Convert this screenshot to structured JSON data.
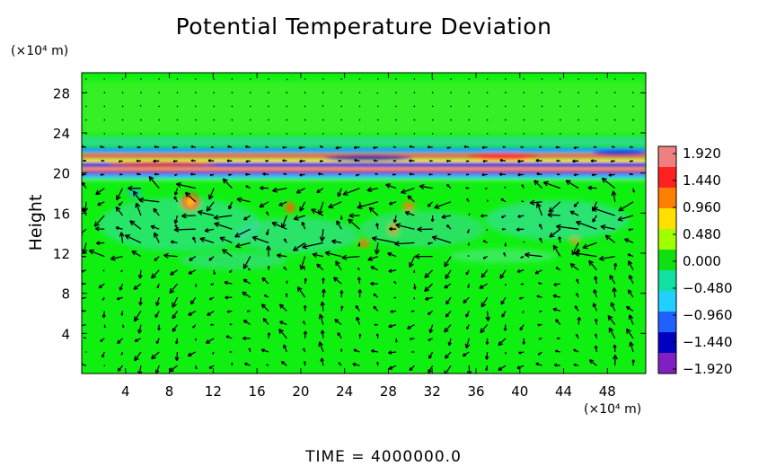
{
  "chart_data": {
    "type": "heatmap",
    "title": "Potential Temperature Deviation",
    "ylabel": "Height",
    "y_unit": "(×10⁴ m)",
    "x_unit": "(×10⁴ m)",
    "x_ticks": [
      4,
      8,
      12,
      16,
      20,
      24,
      28,
      32,
      36,
      40,
      44,
      48
    ],
    "y_ticks": [
      4,
      8,
      12,
      16,
      20,
      24,
      28
    ],
    "xlim": [
      0,
      51.5
    ],
    "ylim": [
      0,
      30
    ],
    "colorbar": {
      "ticks": [
        "1.920",
        "1.440",
        "0.960",
        "0.480",
        "0.000",
        "−0.480",
        "−0.960",
        "−1.440",
        "−1.920"
      ],
      "values": [
        1.92,
        1.44,
        0.96,
        0.48,
        0.0,
        -0.48,
        -0.96,
        -1.44,
        -1.92
      ],
      "colors": [
        "#f08080",
        "#ff2020",
        "#ff8000",
        "#ffe000",
        "#a0ff00",
        "#10e010",
        "#10e0a0",
        "#20d0ff",
        "#2060ff",
        "#0000c0",
        "#8020c0"
      ]
    },
    "background_value_color": "#10f010",
    "inversion_layer_y": [
      19.5,
      22.5
    ],
    "vector_field": "wind vectors (arrows) overlaid on the field"
  },
  "footer": {
    "time_label": "TIME = 4000000.0"
  }
}
